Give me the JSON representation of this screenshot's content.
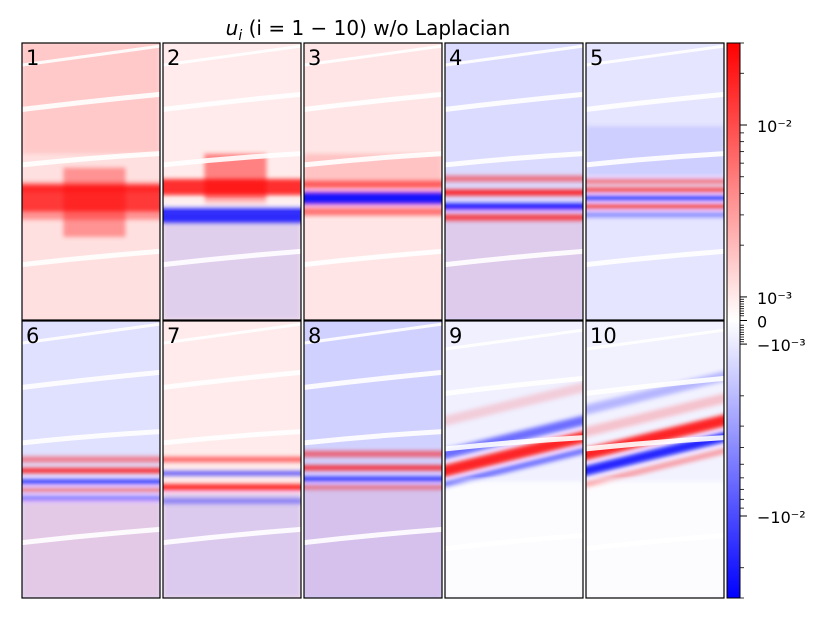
{
  "figure": {
    "title_math": "u",
    "title_sub": "i",
    "title_rest": " (i = 1 − 10) w/o Laplacian"
  },
  "chart_data": {
    "type": "heatmap",
    "title": "u_i (i = 1 − 10) w/o Laplacian",
    "panels": [
      {
        "label": "1"
      },
      {
        "label": "2"
      },
      {
        "label": "3"
      },
      {
        "label": "4"
      },
      {
        "label": "5"
      },
      {
        "label": "6"
      },
      {
        "label": "7"
      },
      {
        "label": "8"
      },
      {
        "label": "9"
      },
      {
        "label": "10"
      }
    ],
    "colorbar": {
      "colormap": "bwr",
      "scale": "symlog",
      "linthresh": 0.001,
      "vmin": -0.03,
      "vmax": 0.03,
      "tick_labels": [
        "10⁻²",
        "10⁻³",
        "0",
        "−10⁻³",
        "−10⁻²"
      ],
      "tick_values": [
        0.01,
        0.001,
        0,
        -0.001,
        -0.01
      ]
    },
    "colors": {
      "positive": "#ff0000",
      "zero": "#ffffff",
      "negative": "#0000ff"
    }
  }
}
